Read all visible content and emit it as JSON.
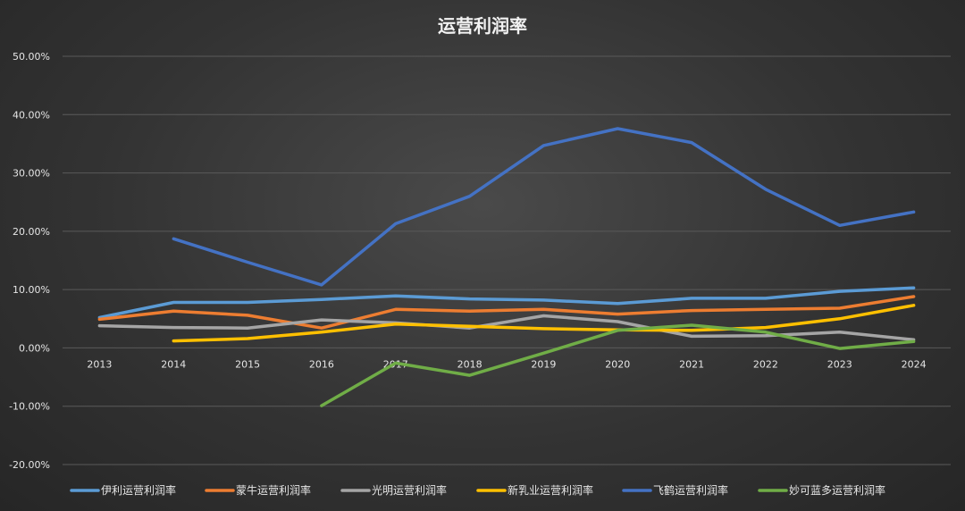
{
  "chart_data": {
    "type": "line",
    "title": "运营利润率",
    "xlabel": "",
    "ylabel": "",
    "categories": [
      "2013",
      "2014",
      "2015",
      "2016",
      "2017",
      "2018",
      "2019",
      "2020",
      "2021",
      "2022",
      "2023",
      "2024"
    ],
    "ylim": [
      -0.2,
      0.5
    ],
    "yticks": [
      "-20.00%",
      "-10.00%",
      "0.00%",
      "10.00%",
      "20.00%",
      "30.00%",
      "40.00%",
      "50.00%"
    ],
    "grid": true,
    "legend_position": "bottom",
    "series": [
      {
        "name": "伊利运营利润率",
        "color": "#5b9bd5",
        "values": [
          0.052,
          0.078,
          0.078,
          0.083,
          0.089,
          0.084,
          0.082,
          0.076,
          0.085,
          0.085,
          0.097,
          0.103
        ]
      },
      {
        "name": "蒙牛运营利润率",
        "color": "#ed7d31",
        "values": [
          0.049,
          0.063,
          0.056,
          0.034,
          0.066,
          0.063,
          0.066,
          0.058,
          0.064,
          0.066,
          0.068,
          0.088
        ]
      },
      {
        "name": "光明运营利润率",
        "color": "#a5a5a5",
        "values": [
          0.038,
          0.035,
          0.034,
          0.048,
          0.043,
          0.034,
          0.055,
          0.045,
          0.02,
          0.021,
          0.027,
          0.014
        ]
      },
      {
        "name": "新乳业运营利润率",
        "color": "#ffc000",
        "values": [
          null,
          0.012,
          0.016,
          0.027,
          0.041,
          0.037,
          0.033,
          0.031,
          0.03,
          0.035,
          0.05,
          0.073
        ]
      },
      {
        "name": "飞鹤运营利润率",
        "color": "#4472c4",
        "values": [
          null,
          0.187,
          0.147,
          0.108,
          0.213,
          0.26,
          0.347,
          0.376,
          0.352,
          0.272,
          0.21,
          0.233
        ]
      },
      {
        "name": "妙可蓝多运营利润率",
        "color": "#70ad47",
        "values": [
          null,
          null,
          null,
          -0.099,
          -0.026,
          -0.047,
          -0.009,
          0.03,
          0.039,
          0.027,
          -0.001,
          0.011
        ]
      }
    ]
  }
}
